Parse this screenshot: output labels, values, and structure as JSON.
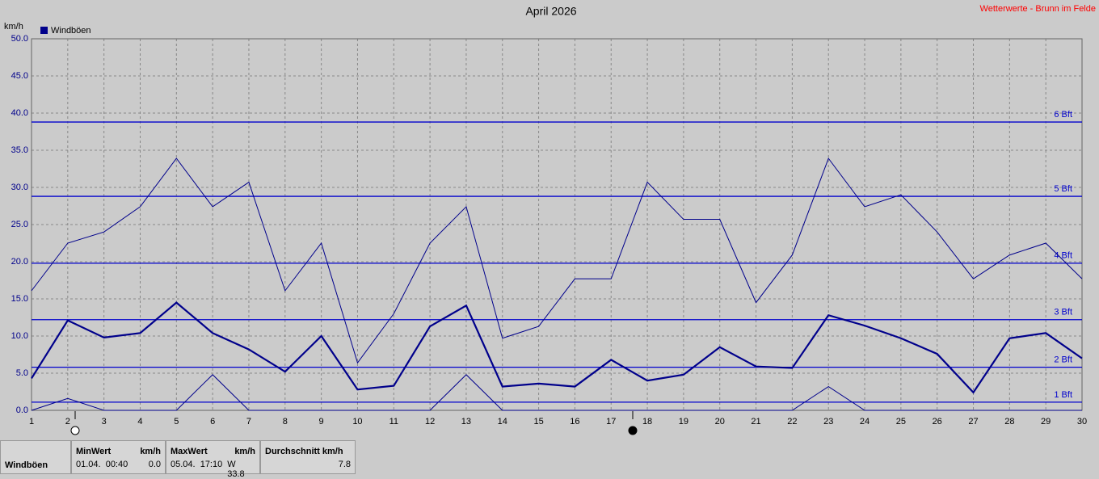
{
  "chart_data": {
    "type": "line",
    "title": "April 2026",
    "source": "Wetterwerte - Brunn im Felde",
    "y_unit": "km/h",
    "legend_label": "Windböen",
    "color": "#00008b",
    "grid": true,
    "x": [
      1,
      2,
      3,
      4,
      5,
      6,
      7,
      8,
      9,
      10,
      11,
      12,
      13,
      14,
      15,
      16,
      17,
      18,
      19,
      20,
      21,
      22,
      23,
      24,
      25,
      26,
      27,
      28,
      29,
      30
    ],
    "xlim": [
      1,
      30
    ],
    "ylim": [
      0,
      50
    ],
    "yticks": [
      {
        "value": 0,
        "label": "0.0"
      },
      {
        "value": 5,
        "label": "5.0"
      },
      {
        "value": 10,
        "label": "10.0"
      },
      {
        "value": 15,
        "label": "15.0"
      },
      {
        "value": 20,
        "label": "20.0"
      },
      {
        "value": 25,
        "label": "25.0"
      },
      {
        "value": 30,
        "label": "30.0"
      },
      {
        "value": 35,
        "label": "35.0"
      },
      {
        "value": 40,
        "label": "40.0"
      },
      {
        "value": 45,
        "label": "45.0"
      },
      {
        "value": 50,
        "label": "50.0"
      }
    ],
    "series": [
      {
        "color": "#00008b",
        "width": 1,
        "values": [
          16.1,
          22.5,
          24.0,
          27.4,
          33.9,
          27.4,
          30.7,
          16.1,
          22.5,
          6.4,
          13.0,
          22.5,
          27.4,
          9.7,
          11.3,
          17.7,
          17.7,
          30.7,
          25.7,
          25.7,
          14.5,
          20.9,
          33.9,
          27.4,
          29.0,
          24.0,
          17.7,
          20.9,
          22.5,
          17.7
        ]
      },
      {
        "color": "#00008b",
        "width": 2.2,
        "values": [
          4.3,
          12.1,
          9.8,
          10.4,
          14.5,
          10.4,
          8.2,
          5.2,
          10.0,
          2.8,
          3.3,
          11.3,
          14.1,
          3.2,
          3.6,
          3.2,
          6.8,
          4.0,
          4.8,
          8.5,
          5.9,
          5.7,
          12.8,
          11.4,
          9.7,
          7.6,
          2.4,
          9.7,
          10.4,
          7.0
        ]
      },
      {
        "color": "#00008b",
        "width": 1,
        "values": [
          0,
          1.6,
          0,
          0,
          0,
          4.8,
          0,
          0,
          0,
          0,
          0,
          0,
          4.8,
          0,
          0,
          0,
          0,
          0,
          0,
          0,
          0,
          0,
          3.2,
          0,
          0,
          0,
          0,
          0,
          0,
          0
        ]
      }
    ],
    "reference_lines": [
      {
        "value": 1.1,
        "label": "1 Bft"
      },
      {
        "value": 5.8,
        "label": "2 Bft"
      },
      {
        "value": 12.2,
        "label": "3 Bft"
      },
      {
        "value": 19.8,
        "label": "4 Bft"
      },
      {
        "value": 28.8,
        "label": "5 Bft"
      },
      {
        "value": 38.8,
        "label": "6 Bft"
      }
    ]
  },
  "stats": {
    "name": "Windböen",
    "min_header": "MinWert",
    "max_header": "MaxWert",
    "avg_header": "Durchschnitt km/h",
    "unit": "km/h",
    "min_time": "01.04.  00:40",
    "min_value": "0.0",
    "max_time": "05.04.  17:10",
    "max_value": "W 33.8",
    "avg_value": "7.8"
  }
}
